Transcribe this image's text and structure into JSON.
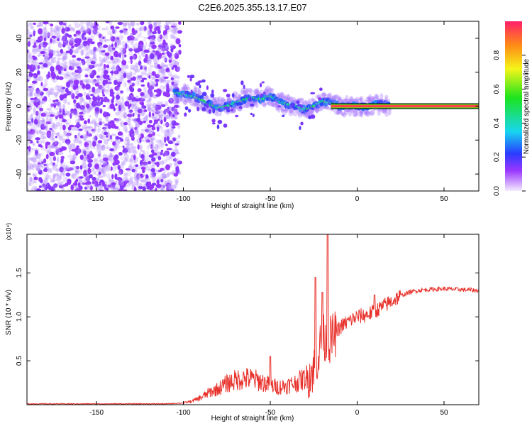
{
  "title": "C2E6.2025.355.13.17.E07",
  "chart_data": [
    {
      "type": "heatmap",
      "xlabel": "Height of straight line (km)",
      "ylabel": "Frequency (Hz)",
      "xlim": [
        -190,
        70
      ],
      "ylim": [
        -50,
        50
      ],
      "xticks": [
        -150,
        -100,
        -50,
        0,
        50
      ],
      "yticks": [
        -40,
        -20,
        0,
        20,
        40
      ],
      "colorbar": {
        "label": "Normalized spectral amplitude",
        "range": [
          0,
          1
        ],
        "ticks": [
          "0.0",
          "0.2",
          "0.4",
          "0.6",
          "0.8"
        ]
      },
      "ridge_frequency_trace": {
        "x": [
          -105,
          -95,
          -90,
          -85,
          -80,
          -75,
          -70,
          -65,
          -60,
          -55,
          -50,
          -45,
          -40,
          -35,
          -30,
          -25,
          -20,
          -15,
          -10,
          -5,
          0,
          5,
          10,
          15,
          20,
          70
        ],
        "y": [
          8,
          6,
          4,
          1,
          -1,
          0,
          2,
          4,
          5,
          4,
          6,
          3,
          1,
          0,
          -2,
          0,
          3,
          2,
          0,
          0,
          0,
          0,
          1,
          1,
          0,
          0
        ]
      }
    },
    {
      "type": "line",
      "xlabel": "Height of straight line (km)",
      "ylabel": "SNR (10 * v/v)",
      "y_multiplier": "(x10⁴)",
      "xlim": [
        -190,
        70
      ],
      "ylim": [
        0,
        1.94
      ],
      "xticks": [
        -150,
        -100,
        -50,
        0,
        50
      ],
      "yticks": [
        0.5,
        1.0,
        1.5
      ],
      "ytick_labels": [
        "0.5",
        "1.0",
        "1.5"
      ],
      "series": [
        {
          "color": "#e8302a",
          "x": [
            -190,
            -160,
            -130,
            -110,
            -100,
            -95,
            -90,
            -85,
            -80,
            -75,
            -70,
            -65,
            -60,
            -55,
            -50,
            -45,
            -40,
            -35,
            -30,
            -25,
            -22,
            -20,
            -18,
            -15,
            -12,
            -10,
            -5,
            0,
            5,
            10,
            15,
            20,
            25,
            30,
            35,
            40,
            50,
            60,
            70
          ],
          "y": [
            0.01,
            0.01,
            0.01,
            0.01,
            0.02,
            0.04,
            0.08,
            0.14,
            0.18,
            0.24,
            0.28,
            0.3,
            0.29,
            0.26,
            0.22,
            0.2,
            0.22,
            0.25,
            0.3,
            0.4,
            0.6,
            0.8,
            0.7,
            0.75,
            0.82,
            0.88,
            0.95,
            1.0,
            1.02,
            1.06,
            1.12,
            1.18,
            1.24,
            1.28,
            1.3,
            1.31,
            1.32,
            1.31,
            1.3
          ]
        }
      ],
      "spikes": [
        [
          -50,
          0.55
        ],
        [
          -24,
          1.45
        ],
        [
          -20,
          1.28
        ],
        [
          -17,
          1.94
        ],
        [
          10,
          1.25
        ]
      ]
    }
  ]
}
